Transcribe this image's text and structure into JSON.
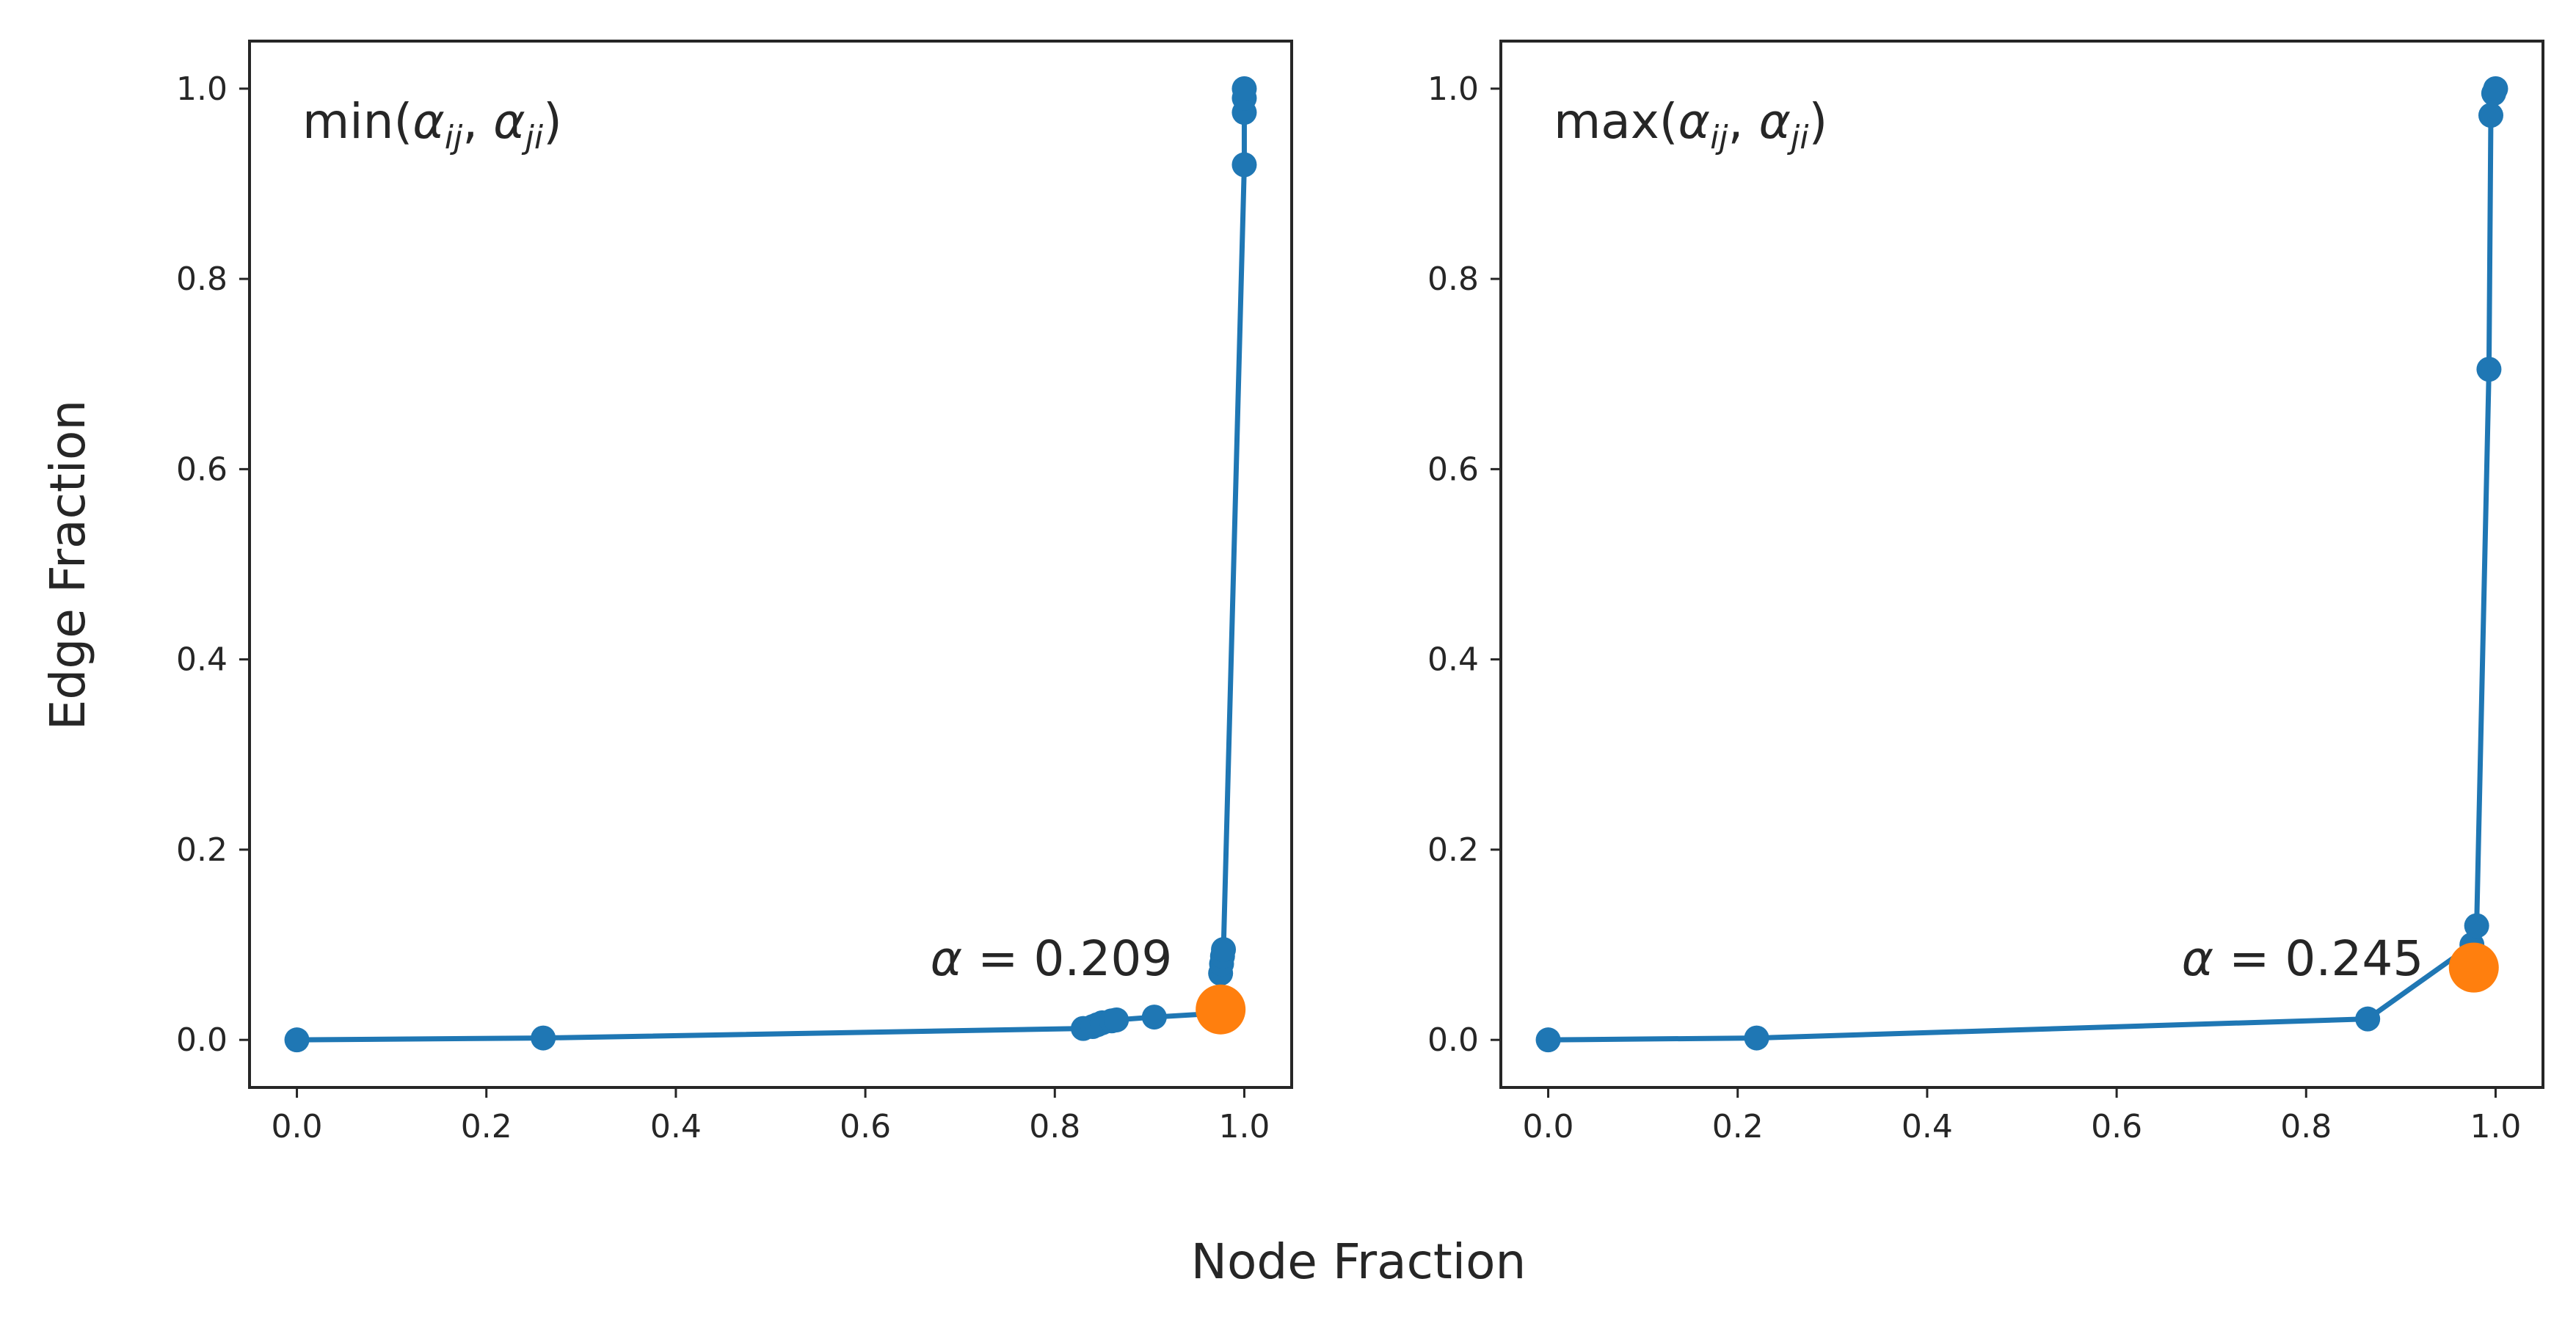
{
  "figure": {
    "xlabel": "Node Fraction",
    "ylabel": "Edge Fraction"
  },
  "chart_data": [
    {
      "type": "line",
      "title": "min(α_ij, α_ji)",
      "title_parts": {
        "fn": "min(",
        "a": "α",
        "sub1": "ij",
        "sep": ", ",
        "b": "α",
        "sub2": "ji",
        "close": ")"
      },
      "xlim": [
        -0.05,
        1.05
      ],
      "ylim": [
        -0.05,
        1.05
      ],
      "xticks": [
        "0.0",
        "0.2",
        "0.4",
        "0.6",
        "0.8",
        "1.0"
      ],
      "yticks": [
        "0.0",
        "0.2",
        "0.4",
        "0.6",
        "0.8",
        "1.0"
      ],
      "series": [
        {
          "color": "#1f77b4",
          "x": [
            0.0,
            0.26,
            0.83,
            0.84,
            0.845,
            0.85,
            0.86,
            0.865,
            0.905,
            0.972,
            0.975,
            0.976,
            0.977,
            0.978,
            1.0,
            1.0,
            1.0,
            1.0
          ],
          "y": [
            0.0,
            0.002,
            0.012,
            0.014,
            0.016,
            0.018,
            0.02,
            0.021,
            0.024,
            0.028,
            0.07,
            0.08,
            0.088,
            0.095,
            0.92,
            0.975,
            0.99,
            1.0
          ]
        }
      ],
      "highlight": {
        "x": 0.975,
        "y": 0.032,
        "color": "#ff7f0e"
      },
      "annotation": {
        "symbol": "α",
        "text": " = 0.209",
        "x": 0.955,
        "y": 0.085
      },
      "grid": false,
      "show_ylabels": true
    },
    {
      "type": "line",
      "title": "max(α_ij, α_ji)",
      "title_parts": {
        "fn": "max(",
        "a": "α",
        "sub1": "ij",
        "sep": ", ",
        "b": "α",
        "sub2": "ji",
        "close": ")"
      },
      "xlim": [
        -0.05,
        1.05
      ],
      "ylim": [
        -0.05,
        1.05
      ],
      "xticks": [
        "0.0",
        "0.2",
        "0.4",
        "0.6",
        "0.8",
        "1.0"
      ],
      "yticks": [
        "0.0",
        "0.2",
        "0.4",
        "0.6",
        "0.8",
        "1.0"
      ],
      "series": [
        {
          "color": "#1f77b4",
          "x": [
            0.0,
            0.22,
            0.865,
            0.975,
            0.98,
            0.993,
            0.995,
            0.998,
            1.0
          ],
          "y": [
            0.0,
            0.002,
            0.022,
            0.1,
            0.12,
            0.705,
            0.972,
            0.995,
            1.0
          ]
        }
      ],
      "highlight": {
        "x": 0.977,
        "y": 0.076,
        "color": "#ff7f0e"
      },
      "annotation": {
        "symbol": "α",
        "text": " = 0.245",
        "x": 0.955,
        "y": 0.085
      },
      "grid": false,
      "show_ylabels": true
    }
  ]
}
